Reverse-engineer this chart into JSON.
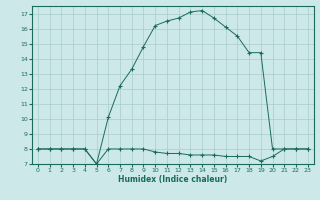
{
  "xlabel": "Humidex (Indice chaleur)",
  "ylabel": "",
  "bg_color": "#cce8e8",
  "grid_color": "#aacccc",
  "line_color": "#1a6b5a",
  "xlim": [
    -0.5,
    23.5
  ],
  "ylim": [
    7,
    17.5
  ],
  "xticks": [
    0,
    1,
    2,
    3,
    4,
    5,
    6,
    7,
    8,
    9,
    10,
    11,
    12,
    13,
    14,
    15,
    16,
    17,
    18,
    19,
    20,
    21,
    22,
    23
  ],
  "yticks": [
    7,
    8,
    9,
    10,
    11,
    12,
    13,
    14,
    15,
    16,
    17
  ],
  "curve1_x": [
    0,
    1,
    2,
    3,
    4,
    5,
    6,
    7,
    8,
    9,
    10,
    11,
    12,
    13,
    14,
    15,
    16,
    17,
    18,
    19,
    20,
    21,
    22,
    23
  ],
  "curve1_y": [
    8.0,
    8.0,
    8.0,
    8.0,
    8.0,
    7.0,
    8.0,
    8.0,
    8.0,
    8.0,
    7.8,
    7.7,
    7.7,
    7.6,
    7.6,
    7.6,
    7.5,
    7.5,
    7.5,
    7.2,
    7.5,
    8.0,
    8.0,
    8.0
  ],
  "curve2_x": [
    0,
    1,
    2,
    3,
    4,
    5,
    6,
    7,
    8,
    9,
    10,
    11,
    12,
    13,
    14,
    15,
    16,
    17,
    18,
    19,
    20,
    21,
    22,
    23
  ],
  "curve2_y": [
    8.0,
    8.0,
    8.0,
    8.0,
    8.0,
    7.0,
    10.1,
    12.2,
    13.3,
    14.8,
    16.2,
    16.5,
    16.7,
    17.1,
    17.2,
    16.7,
    16.1,
    15.5,
    14.4,
    14.4,
    8.0,
    8.0,
    8.0,
    8.0
  ]
}
